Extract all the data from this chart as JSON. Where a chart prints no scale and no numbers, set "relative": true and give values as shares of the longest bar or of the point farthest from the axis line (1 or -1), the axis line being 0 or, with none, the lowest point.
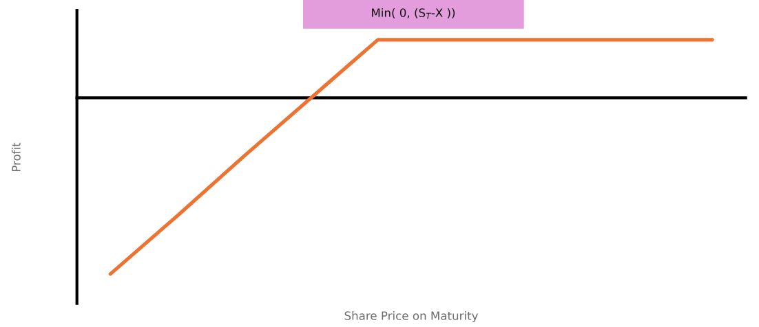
{
  "chart_data": {
    "type": "line",
    "relative": true,
    "annotations": [
      "Min( 0, (S$_{T}$-X ))"
    ],
    "xlabel": "Share Price on Maturity",
    "ylabel": "Profit",
    "categories": [
      null,
      null,
      null,
      null,
      null,
      null,
      null,
      null,
      null,
      null
    ],
    "series": [
      {
        "color": "#ec7332",
        "values": [
          -1,
          -0.67,
          -0.33,
          0,
          0.33,
          0.33,
          0.33,
          0.33,
          0.33,
          0.33
        ]
      }
    ]
  }
}
